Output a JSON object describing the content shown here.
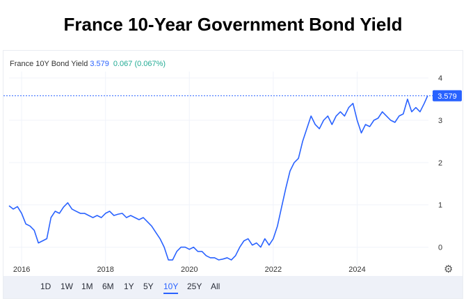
{
  "page": {
    "title": "France 10-Year Government Bond Yield"
  },
  "legend": {
    "name": "France 10Y Bond Yield",
    "value": "3.579",
    "change": "0.067 (0.067%)"
  },
  "price_tag": "3.579",
  "ranges": [
    "1D",
    "1W",
    "1M",
    "6M",
    "1Y",
    "5Y",
    "10Y",
    "25Y",
    "All"
  ],
  "active_range": "10Y",
  "colors": {
    "line": "#2962ff",
    "positive": "#22ab94",
    "tag": "#2962ff"
  },
  "icons": {
    "settings": "gear-icon"
  },
  "chart_data": {
    "type": "line",
    "title": "France 10-Year Government Bond Yield",
    "xlabel": "",
    "ylabel": "",
    "xlim": [
      2015.7,
      2025.7
    ],
    "ylim": [
      -0.45,
      4.15
    ],
    "x_ticks": [
      {
        "v": 2016,
        "label": "2016"
      },
      {
        "v": 2018,
        "label": "2018"
      },
      {
        "v": 2020,
        "label": "2020"
      },
      {
        "v": 2022,
        "label": "2022"
      },
      {
        "v": 2024,
        "label": "2024"
      }
    ],
    "y_ticks": [
      {
        "v": 4,
        "label": "4"
      },
      {
        "v": 3,
        "label": "3"
      },
      {
        "v": 2,
        "label": "2"
      },
      {
        "v": 1,
        "label": "1"
      },
      {
        "v": 0,
        "label": "0"
      }
    ],
    "grid": true,
    "last_value": 3.579,
    "series": [
      {
        "name": "France 10Y Bond Yield",
        "x": [
          2015.7,
          2015.8,
          2015.9,
          2016.0,
          2016.1,
          2016.2,
          2016.3,
          2016.4,
          2016.5,
          2016.6,
          2016.7,
          2016.8,
          2016.9,
          2017.0,
          2017.1,
          2017.2,
          2017.3,
          2017.4,
          2017.5,
          2017.6,
          2017.7,
          2017.8,
          2017.9,
          2018.0,
          2018.1,
          2018.2,
          2018.3,
          2018.4,
          2018.5,
          2018.6,
          2018.7,
          2018.8,
          2018.9,
          2019.0,
          2019.1,
          2019.2,
          2019.3,
          2019.4,
          2019.5,
          2019.6,
          2019.7,
          2019.8,
          2019.9,
          2020.0,
          2020.1,
          2020.2,
          2020.3,
          2020.4,
          2020.5,
          2020.6,
          2020.7,
          2020.8,
          2020.9,
          2021.0,
          2021.1,
          2021.2,
          2021.3,
          2021.4,
          2021.5,
          2021.6,
          2021.7,
          2021.8,
          2021.9,
          2022.0,
          2022.1,
          2022.2,
          2022.3,
          2022.4,
          2022.5,
          2022.6,
          2022.7,
          2022.8,
          2022.9,
          2023.0,
          2023.1,
          2023.2,
          2023.3,
          2023.4,
          2023.5,
          2023.6,
          2023.7,
          2023.8,
          2023.9,
          2024.0,
          2024.1,
          2024.2,
          2024.3,
          2024.4,
          2024.5,
          2024.6,
          2024.7,
          2024.8,
          2024.9,
          2025.0,
          2025.1,
          2025.2,
          2025.3,
          2025.4,
          2025.5,
          2025.6,
          2025.68
        ],
        "y": [
          0.98,
          0.9,
          0.96,
          0.8,
          0.55,
          0.5,
          0.4,
          0.1,
          0.15,
          0.2,
          0.7,
          0.85,
          0.8,
          0.95,
          1.05,
          0.9,
          0.85,
          0.8,
          0.8,
          0.75,
          0.7,
          0.75,
          0.7,
          0.8,
          0.85,
          0.75,
          0.78,
          0.8,
          0.7,
          0.75,
          0.7,
          0.65,
          0.7,
          0.6,
          0.5,
          0.35,
          0.2,
          0.0,
          -0.3,
          -0.3,
          -0.1,
          0.0,
          0.0,
          -0.05,
          0.0,
          -0.1,
          -0.1,
          -0.2,
          -0.25,
          -0.25,
          -0.3,
          -0.28,
          -0.25,
          -0.3,
          -0.2,
          0.0,
          0.15,
          0.2,
          0.05,
          0.1,
          0.0,
          0.2,
          0.05,
          0.2,
          0.5,
          0.95,
          1.4,
          1.8,
          2.0,
          2.1,
          2.5,
          2.8,
          3.1,
          2.9,
          2.8,
          3.0,
          3.1,
          2.9,
          3.1,
          3.2,
          3.1,
          3.3,
          3.4,
          3.0,
          2.7,
          2.9,
          2.85,
          3.0,
          3.05,
          3.2,
          3.1,
          3.0,
          2.95,
          3.1,
          3.15,
          3.5,
          3.2,
          3.3,
          3.2,
          3.4,
          3.579
        ]
      }
    ]
  }
}
